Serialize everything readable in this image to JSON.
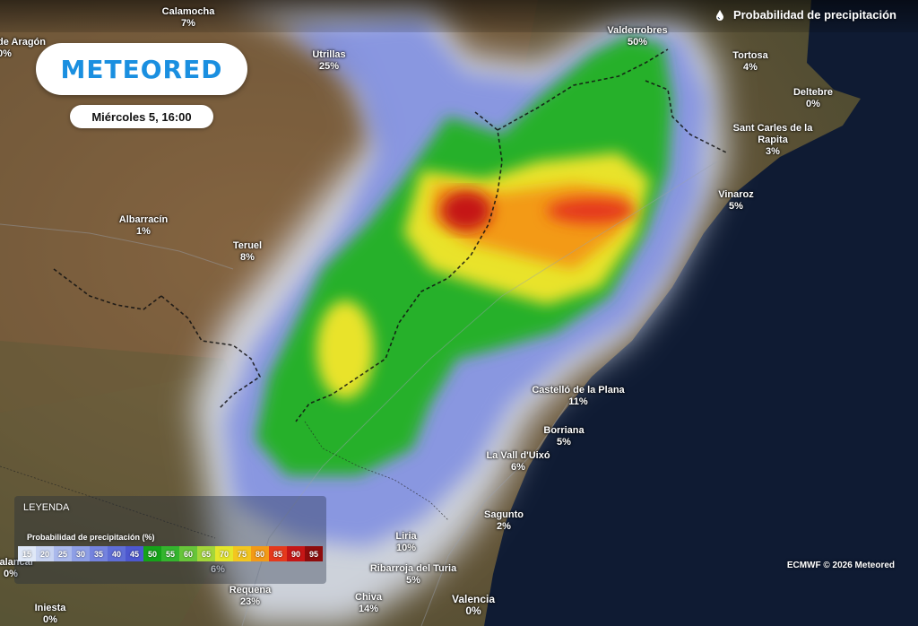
{
  "header": {
    "title": "Probabilidad de precipitación",
    "icon": "drop-icon"
  },
  "logo": {
    "text": "METEORED"
  },
  "date_label": "Miércoles 5, 16:00",
  "places": [
    {
      "name": "Calamocha",
      "pct": "7%"
    },
    {
      "name": "de Aragón",
      "pct": "0%"
    },
    {
      "name": "Utrillas",
      "pct": "25%"
    },
    {
      "name": "Valderrobres",
      "pct": "50%"
    },
    {
      "name": "Tortosa",
      "pct": "4%"
    },
    {
      "name": "Deltebre",
      "pct": "0%"
    },
    {
      "name": "Sant Carles de la Rapita",
      "pct": "3%"
    },
    {
      "name": "Vinaroz",
      "pct": "5%"
    },
    {
      "name": "Albarracín",
      "pct": "1%"
    },
    {
      "name": "Teruel",
      "pct": "8%"
    },
    {
      "name": "Castelló de la Plana",
      "pct": "11%"
    },
    {
      "name": "Borriana",
      "pct": "5%"
    },
    {
      "name": "La Vall d'Uixó",
      "pct": "6%"
    },
    {
      "name": "Sagunto",
      "pct": "2%"
    },
    {
      "name": "Liria",
      "pct": "10%"
    },
    {
      "name": "Ribarroja del Turia",
      "pct": "5%"
    },
    {
      "name": "Requena",
      "pct": "23%"
    },
    {
      "name": "Chiva",
      "pct": "14%"
    },
    {
      "name": "Valencia",
      "pct": "0%"
    },
    {
      "name": "Iniesta",
      "pct": "0%"
    },
    {
      "name": "l Palancar",
      "pct": "0%"
    },
    {
      "name": "",
      "pct": "6%"
    }
  ],
  "legend": {
    "title": "LEYENDA",
    "subtitle": "Probabilidad de precipitación (%)",
    "scale": [
      {
        "value": "15",
        "color": "#dfe8f7"
      },
      {
        "value": "20",
        "color": "#c7d3f1"
      },
      {
        "value": "25",
        "color": "#aab9ec"
      },
      {
        "value": "30",
        "color": "#8e9fe6"
      },
      {
        "value": "35",
        "color": "#7483de"
      },
      {
        "value": "40",
        "color": "#5f6ed6"
      },
      {
        "value": "45",
        "color": "#4d58cf"
      },
      {
        "value": "50",
        "color": "#15a319"
      },
      {
        "value": "55",
        "color": "#34b52e"
      },
      {
        "value": "60",
        "color": "#67c53a"
      },
      {
        "value": "65",
        "color": "#a3d63a"
      },
      {
        "value": "70",
        "color": "#e4e62b"
      },
      {
        "value": "75",
        "color": "#f3c61f"
      },
      {
        "value": "80",
        "color": "#f39a17"
      },
      {
        "value": "85",
        "color": "#e5391c"
      },
      {
        "value": "90",
        "color": "#c51616"
      },
      {
        "value": "95",
        "color": "#8e0c0c"
      }
    ]
  },
  "credit": "ECMWF © 2026 Meteored"
}
